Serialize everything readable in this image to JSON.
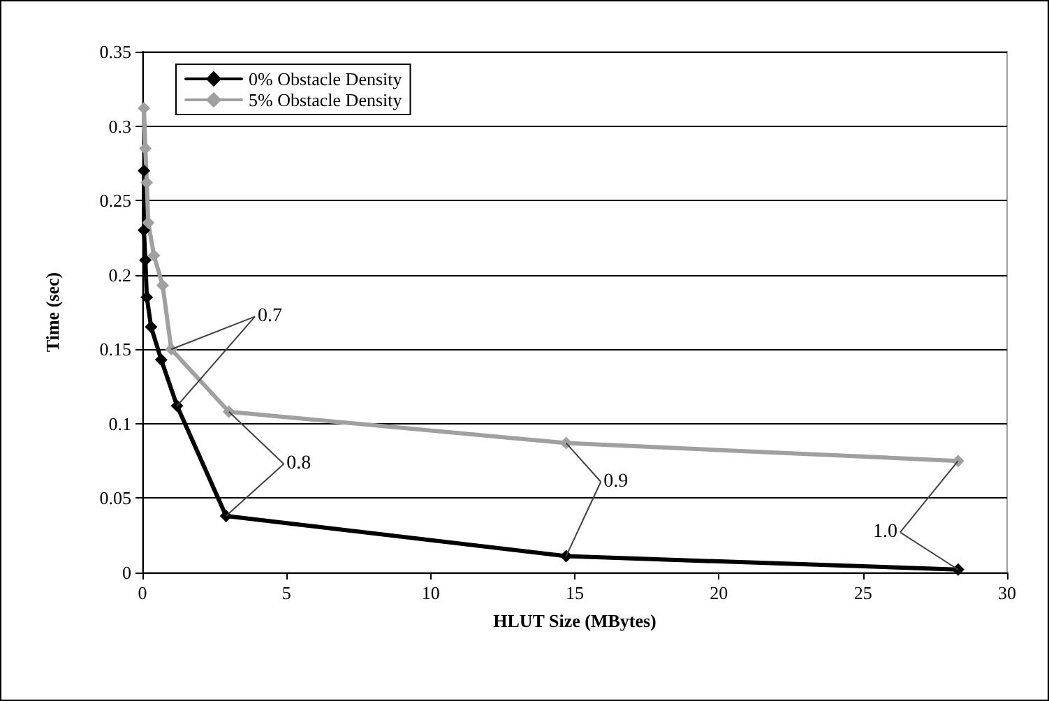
{
  "chart_data": {
    "type": "line",
    "xlabel": "HLUT Size (MBytes)",
    "ylabel": "Time (sec)",
    "xlim": [
      0,
      30
    ],
    "xticks": [
      0,
      5,
      10,
      15,
      20,
      25,
      30
    ],
    "ylim": [
      0,
      0.35
    ],
    "yticks": [
      0,
      0.05,
      0.1,
      0.15,
      0.2,
      0.25,
      0.3,
      0.35
    ],
    "grid": "y",
    "legend": "top left",
    "marker": "diamond",
    "line_style": "solid",
    "series": [
      {
        "name": "0% Obstacle Density",
        "color": "#000000",
        "x": [
          0.05,
          0.05,
          0.1,
          0.15,
          0.3,
          0.65,
          1.2,
          2.9,
          14.7,
          28.3
        ],
        "values": [
          0.27,
          0.23,
          0.21,
          0.185,
          0.165,
          0.143,
          0.112,
          0.038,
          0.011,
          0.002
        ]
      },
      {
        "name": "5% Obstacle Density",
        "color": "#a0a0a0",
        "x": [
          0.05,
          0.1,
          0.15,
          0.2,
          0.4,
          0.7,
          1.0,
          3.0,
          14.7,
          28.3
        ],
        "values": [
          0.312,
          0.285,
          0.262,
          0.235,
          0.213,
          0.193,
          0.15,
          0.108,
          0.087,
          0.075
        ]
      }
    ],
    "annotations": [
      {
        "text": "0.7",
        "x": 1.2,
        "y": 0.112
      },
      {
        "text": "0.8",
        "x": 2.9,
        "y": 0.038
      },
      {
        "text": "0.9",
        "x": 14.7,
        "y": 0.011
      },
      {
        "text": "1.0",
        "x": 28.3,
        "y": 0.002
      }
    ]
  }
}
